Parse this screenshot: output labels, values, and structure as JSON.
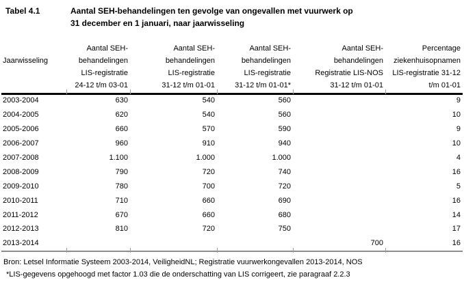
{
  "title": {
    "label": "Tabel 4.1",
    "caption_line1": "Aantal SEH-behandelingen ten gevolge van ongevallen met vuurwerk op",
    "caption_line2": "31 december en 1 januari, naar jaarwisseling"
  },
  "table": {
    "columns": [
      {
        "id": "jaarwisseling",
        "align": "left",
        "lines": [
          "",
          "Jaarwisseling",
          "",
          ""
        ]
      },
      {
        "id": "seh-lis-2412-0301",
        "align": "right",
        "lines": [
          "Aantal SEH-",
          "behandelingen",
          "LIS-registratie",
          "24-12 t/m 03-01"
        ]
      },
      {
        "id": "seh-lis-3112-0101",
        "align": "right",
        "lines": [
          "Aantal SEH-",
          "behandelingen",
          "LIS-registratie",
          "31-12 t/m 01-01"
        ]
      },
      {
        "id": "seh-lis-3112-0101-gecorrigeerd",
        "align": "right",
        "lines": [
          "Aantal SEH-",
          "behandelingen",
          "LIS-registratie",
          "31-12 t/m 01-01*"
        ]
      },
      {
        "id": "seh-lis-nos",
        "align": "right",
        "lines": [
          "Aantal SEH-",
          "behandelingen",
          "Registratie LIS-NOS",
          "31-12 t/m 01-01"
        ]
      },
      {
        "id": "percentage-ziekenhuisopnamen",
        "align": "right",
        "lines": [
          "Percentage",
          "ziekenhuisopnamen",
          "LIS-registratie 31-12",
          "t/m 01-01"
        ]
      }
    ],
    "rows": [
      [
        "2003-2004",
        "630",
        "540",
        "560",
        "",
        "9"
      ],
      [
        "2004-2005",
        "620",
        "540",
        "560",
        "",
        "10"
      ],
      [
        "2005-2006",
        "660",
        "570",
        "590",
        "",
        "9"
      ],
      [
        "2006-2007",
        "960",
        "910",
        "940",
        "",
        "10"
      ],
      [
        "2007-2008",
        "1.100",
        "1.000",
        "1.000",
        "",
        "4"
      ],
      [
        "2008-2009",
        "790",
        "720",
        "740",
        "",
        "16"
      ],
      [
        "2009-2010",
        "780",
        "700",
        "720",
        "",
        "5"
      ],
      [
        "2010-2011",
        "710",
        "660",
        "690",
        "",
        "16"
      ],
      [
        "2011-2012",
        "670",
        "660",
        "680",
        "",
        "14"
      ],
      [
        "2012-2013",
        "810",
        "720",
        "750",
        "",
        "17"
      ],
      [
        "2013-2014",
        "",
        "",
        "",
        "700",
        "16"
      ]
    ]
  },
  "footer": {
    "source": "Bron: Letsel Informatie Systeem 2003-2014, VeiligheidNL; Registratie vuurwerkongevallen 2013-2014, NOS",
    "footnote": "*LIS-gegevens opgehoogd met factor 1.03 die de onderschatting van LIS corrigeert, zie paragraaf 2.2.3"
  }
}
